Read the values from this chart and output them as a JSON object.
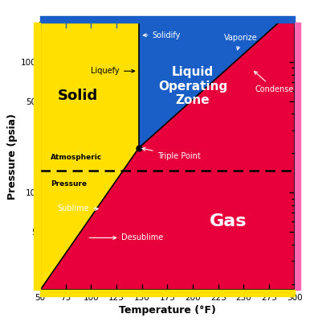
{
  "xmin": 50,
  "xmax": 300,
  "ymin": 1.8,
  "ymax": 200,
  "triple_point_T": 147,
  "triple_point_P": 22.0,
  "atm_pressure": 14.7,
  "solid_color": "#FFE000",
  "liquid_color": "#1A5FC8",
  "gas_color": "#E8003C",
  "xlabel": "Temperature (°F)",
  "ylabel": "Pressure (psia)",
  "sub_curve_T0": 50,
  "sub_curve_P0": 1.8,
  "vap_k_T": 250,
  "vap_k_P": 115,
  "border_yellow": "#FFE000",
  "border_blue": "#1A5FC8",
  "border_pink": "#FF69B4",
  "atm_line_color": "black",
  "tp_marker_color": "black",
  "yticks": [
    5,
    10,
    50,
    100
  ],
  "xticks": [
    50,
    75,
    100,
    125,
    150,
    175,
    200,
    225,
    250,
    275,
    300
  ]
}
